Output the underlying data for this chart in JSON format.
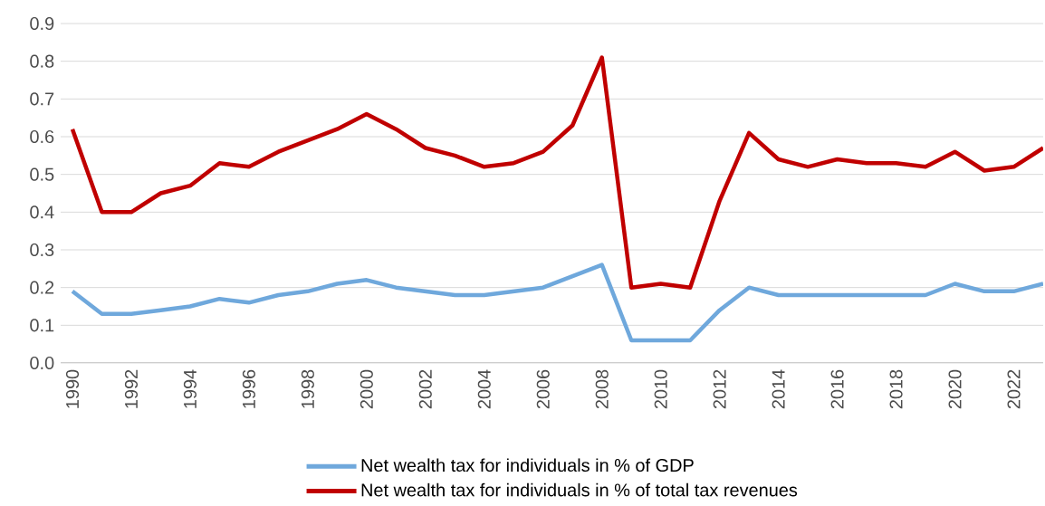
{
  "chart_data": {
    "type": "line",
    "categories": [
      "1990",
      null,
      "1992",
      null,
      "1994",
      null,
      "1996",
      null,
      "1998",
      null,
      "2000",
      null,
      "2002",
      null,
      "2004",
      null,
      "2006",
      null,
      "2008",
      null,
      "2010",
      null,
      "2012",
      null,
      "2014",
      null,
      "2016",
      null,
      "2018",
      null,
      "2020",
      null,
      "2022",
      null
    ],
    "series": [
      {
        "name": "Net wealth tax for individuals in % of GDP",
        "color": "#6fa8dc",
        "values": [
          0.19,
          0.13,
          0.13,
          0.14,
          0.15,
          0.17,
          0.16,
          0.18,
          0.19,
          0.21,
          0.22,
          0.2,
          0.19,
          0.18,
          0.18,
          0.19,
          0.2,
          0.23,
          0.26,
          0.06,
          0.06,
          0.06,
          0.14,
          0.2,
          0.18,
          0.18,
          0.18,
          0.18,
          0.18,
          0.18,
          0.21,
          0.19,
          0.19,
          0.21
        ]
      },
      {
        "name": "Net wealth tax for individuals in % of total tax revenues",
        "color": "#c00000",
        "values": [
          0.62,
          0.4,
          0.4,
          0.45,
          0.47,
          0.53,
          0.52,
          0.56,
          0.59,
          0.62,
          0.66,
          0.62,
          0.57,
          0.55,
          0.52,
          0.53,
          0.56,
          0.63,
          0.81,
          0.2,
          0.21,
          0.2,
          0.43,
          0.61,
          0.54,
          0.52,
          0.54,
          0.53,
          0.53,
          0.52,
          0.56,
          0.51,
          0.52,
          0.57
        ]
      }
    ],
    "ylim": [
      0,
      0.9
    ],
    "yticks": [
      {
        "value": 0,
        "label": "0.0"
      },
      0.1,
      0.2,
      0.3,
      0.4,
      0.5,
      0.6,
      0.7,
      0.8,
      0.9
    ],
    "grid": "y",
    "legend": "bottom",
    "marker": "none",
    "line_style": "solid"
  }
}
